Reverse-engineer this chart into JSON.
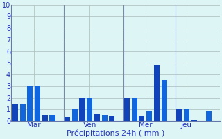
{
  "bars": [
    {
      "x": 1,
      "height": 1.5,
      "color": "#1144bb"
    },
    {
      "x": 2,
      "height": 1.5,
      "color": "#1166dd"
    },
    {
      "x": 3,
      "height": 3.0,
      "color": "#1166dd"
    },
    {
      "x": 4,
      "height": 3.0,
      "color": "#1166dd"
    },
    {
      "x": 5,
      "height": 0.55,
      "color": "#1144bb"
    },
    {
      "x": 6,
      "height": 0.45,
      "color": "#1166dd"
    },
    {
      "x": 8,
      "height": 0.3,
      "color": "#1144bb"
    },
    {
      "x": 9,
      "height": 1.0,
      "color": "#1166dd"
    },
    {
      "x": 10,
      "height": 2.0,
      "color": "#1144bb"
    },
    {
      "x": 11,
      "height": 2.0,
      "color": "#1166dd"
    },
    {
      "x": 12,
      "height": 0.6,
      "color": "#1144bb"
    },
    {
      "x": 13,
      "height": 0.55,
      "color": "#1166dd"
    },
    {
      "x": 14,
      "height": 0.4,
      "color": "#1144bb"
    },
    {
      "x": 16,
      "height": 2.0,
      "color": "#1144bb"
    },
    {
      "x": 17,
      "height": 2.0,
      "color": "#1166dd"
    },
    {
      "x": 18,
      "height": 0.4,
      "color": "#1144bb"
    },
    {
      "x": 19,
      "height": 0.9,
      "color": "#1166dd"
    },
    {
      "x": 20,
      "height": 4.85,
      "color": "#1144bb"
    },
    {
      "x": 21,
      "height": 3.5,
      "color": "#1166dd"
    },
    {
      "x": 23,
      "height": 1.0,
      "color": "#1144bb"
    },
    {
      "x": 24,
      "height": 1.0,
      "color": "#1166dd"
    },
    {
      "x": 25,
      "height": 0.1,
      "color": "#1144bb"
    },
    {
      "x": 27,
      "height": 0.9,
      "color": "#1166dd"
    }
  ],
  "day_separators": [
    0.5,
    7.5,
    15.5,
    22.5
  ],
  "day_label_positions": [
    {
      "label": "Mar",
      "x": 3.5
    },
    {
      "label": "Ven",
      "x": 11.0
    },
    {
      "label": "Mer",
      "x": 18.5
    },
    {
      "label": "Jeu",
      "x": 24.0
    }
  ],
  "xlabel": "Précipitations 24h ( mm )",
  "ylim": [
    0,
    10
  ],
  "yticks": [
    0,
    1,
    2,
    3,
    4,
    5,
    6,
    7,
    8,
    9,
    10
  ],
  "xlim": [
    0.5,
    28.5
  ],
  "bg_color": "#ddf5f5",
  "grid_color": "#aabbbb",
  "bar_width": 0.75
}
